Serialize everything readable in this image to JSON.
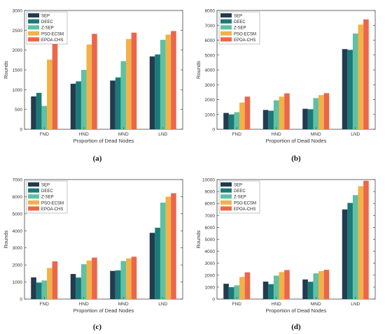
{
  "legend_labels": [
    "SEP",
    "DEEC",
    "Z-SEP",
    "PSO-ECSM",
    "EPOA-CHS"
  ],
  "series_colors": [
    "#213c4e",
    "#1b7a78",
    "#5fc1a3",
    "#f2b247",
    "#ec664a"
  ],
  "chart_data": [
    {
      "type": "bar",
      "caption": "(a)",
      "categories": [
        "FND",
        "HND",
        "MND",
        "LND"
      ],
      "xlabel": "Proportion of Dead Nodes",
      "ylabel": "Rounds",
      "ylim": [
        0,
        3000
      ],
      "yticks": [
        0,
        500,
        1000,
        1500,
        2000,
        2500,
        3000
      ],
      "legend_position": "top-left",
      "series": [
        {
          "name": "SEP",
          "values": [
            830,
            1150,
            1230,
            1840
          ]
        },
        {
          "name": "DEEC",
          "values": [
            920,
            1210,
            1310,
            1890
          ]
        },
        {
          "name": "Z-SEP",
          "values": [
            590,
            1500,
            1720,
            2260
          ]
        },
        {
          "name": "PSO-ECSM",
          "values": [
            1760,
            2140,
            2280,
            2390
          ]
        },
        {
          "name": "EPOA-CHS",
          "values": [
            2190,
            2410,
            2440,
            2480
          ]
        }
      ]
    },
    {
      "type": "bar",
      "caption": "(b)",
      "categories": [
        "FND",
        "HND",
        "MND",
        "LND"
      ],
      "xlabel": "Proportion of Dead Nodes",
      "ylabel": "Rounds",
      "ylim": [
        0,
        8000
      ],
      "yticks": [
        0,
        1000,
        2000,
        3000,
        4000,
        5000,
        6000,
        7000,
        8000
      ],
      "legend_position": "top-left",
      "series": [
        {
          "name": "SEP",
          "values": [
            1100,
            1300,
            1380,
            5400
          ]
        },
        {
          "name": "DEEC",
          "values": [
            1000,
            1250,
            1350,
            5350
          ]
        },
        {
          "name": "Z-SEP",
          "values": [
            1150,
            1950,
            2100,
            6450
          ]
        },
        {
          "name": "PSO-ECSM",
          "values": [
            1800,
            2200,
            2300,
            7050
          ]
        },
        {
          "name": "EPOA-CHS",
          "values": [
            2200,
            2420,
            2430,
            7400
          ]
        }
      ]
    },
    {
      "type": "bar",
      "caption": "(c)",
      "categories": [
        "FND",
        "HND",
        "MND",
        "LND"
      ],
      "xlabel": "Proportion of Dead Nodes",
      "ylabel": "Rounds",
      "ylim": [
        0,
        7000
      ],
      "yticks": [
        0,
        1000,
        2000,
        3000,
        4000,
        5000,
        6000,
        7000
      ],
      "legend_position": "top-left",
      "series": [
        {
          "name": "SEP",
          "values": [
            1270,
            1470,
            1650,
            3880
          ]
        },
        {
          "name": "DEEC",
          "values": [
            970,
            1260,
            1680,
            4180
          ]
        },
        {
          "name": "Z-SEP",
          "values": [
            1090,
            2040,
            2230,
            5650
          ]
        },
        {
          "name": "PSO-ECSM",
          "values": [
            1820,
            2260,
            2380,
            6000
          ]
        },
        {
          "name": "EPOA-CHS",
          "values": [
            2210,
            2430,
            2480,
            6200
          ]
        }
      ]
    },
    {
      "type": "bar",
      "caption": "(d)",
      "categories": [
        "FND",
        "HND",
        "MND",
        "LND"
      ],
      "xlabel": "Proportion of Dead Nodes",
      "ylabel": "Rounds",
      "ylim": [
        0,
        10000
      ],
      "yticks": [
        0,
        1000,
        2000,
        3000,
        4000,
        5000,
        6000,
        7000,
        8000,
        9000,
        10000
      ],
      "legend_position": "top-left",
      "series": [
        {
          "name": "SEP",
          "values": [
            1280,
            1460,
            1640,
            7500
          ]
        },
        {
          "name": "DEEC",
          "values": [
            1000,
            1250,
            1450,
            8050
          ]
        },
        {
          "name": "Z-SEP",
          "values": [
            1150,
            1960,
            2150,
            8700
          ]
        },
        {
          "name": "PSO-ECSM",
          "values": [
            1850,
            2260,
            2340,
            9450
          ]
        },
        {
          "name": "EPOA-CHS",
          "values": [
            2240,
            2430,
            2450,
            9900
          ]
        }
      ]
    }
  ]
}
